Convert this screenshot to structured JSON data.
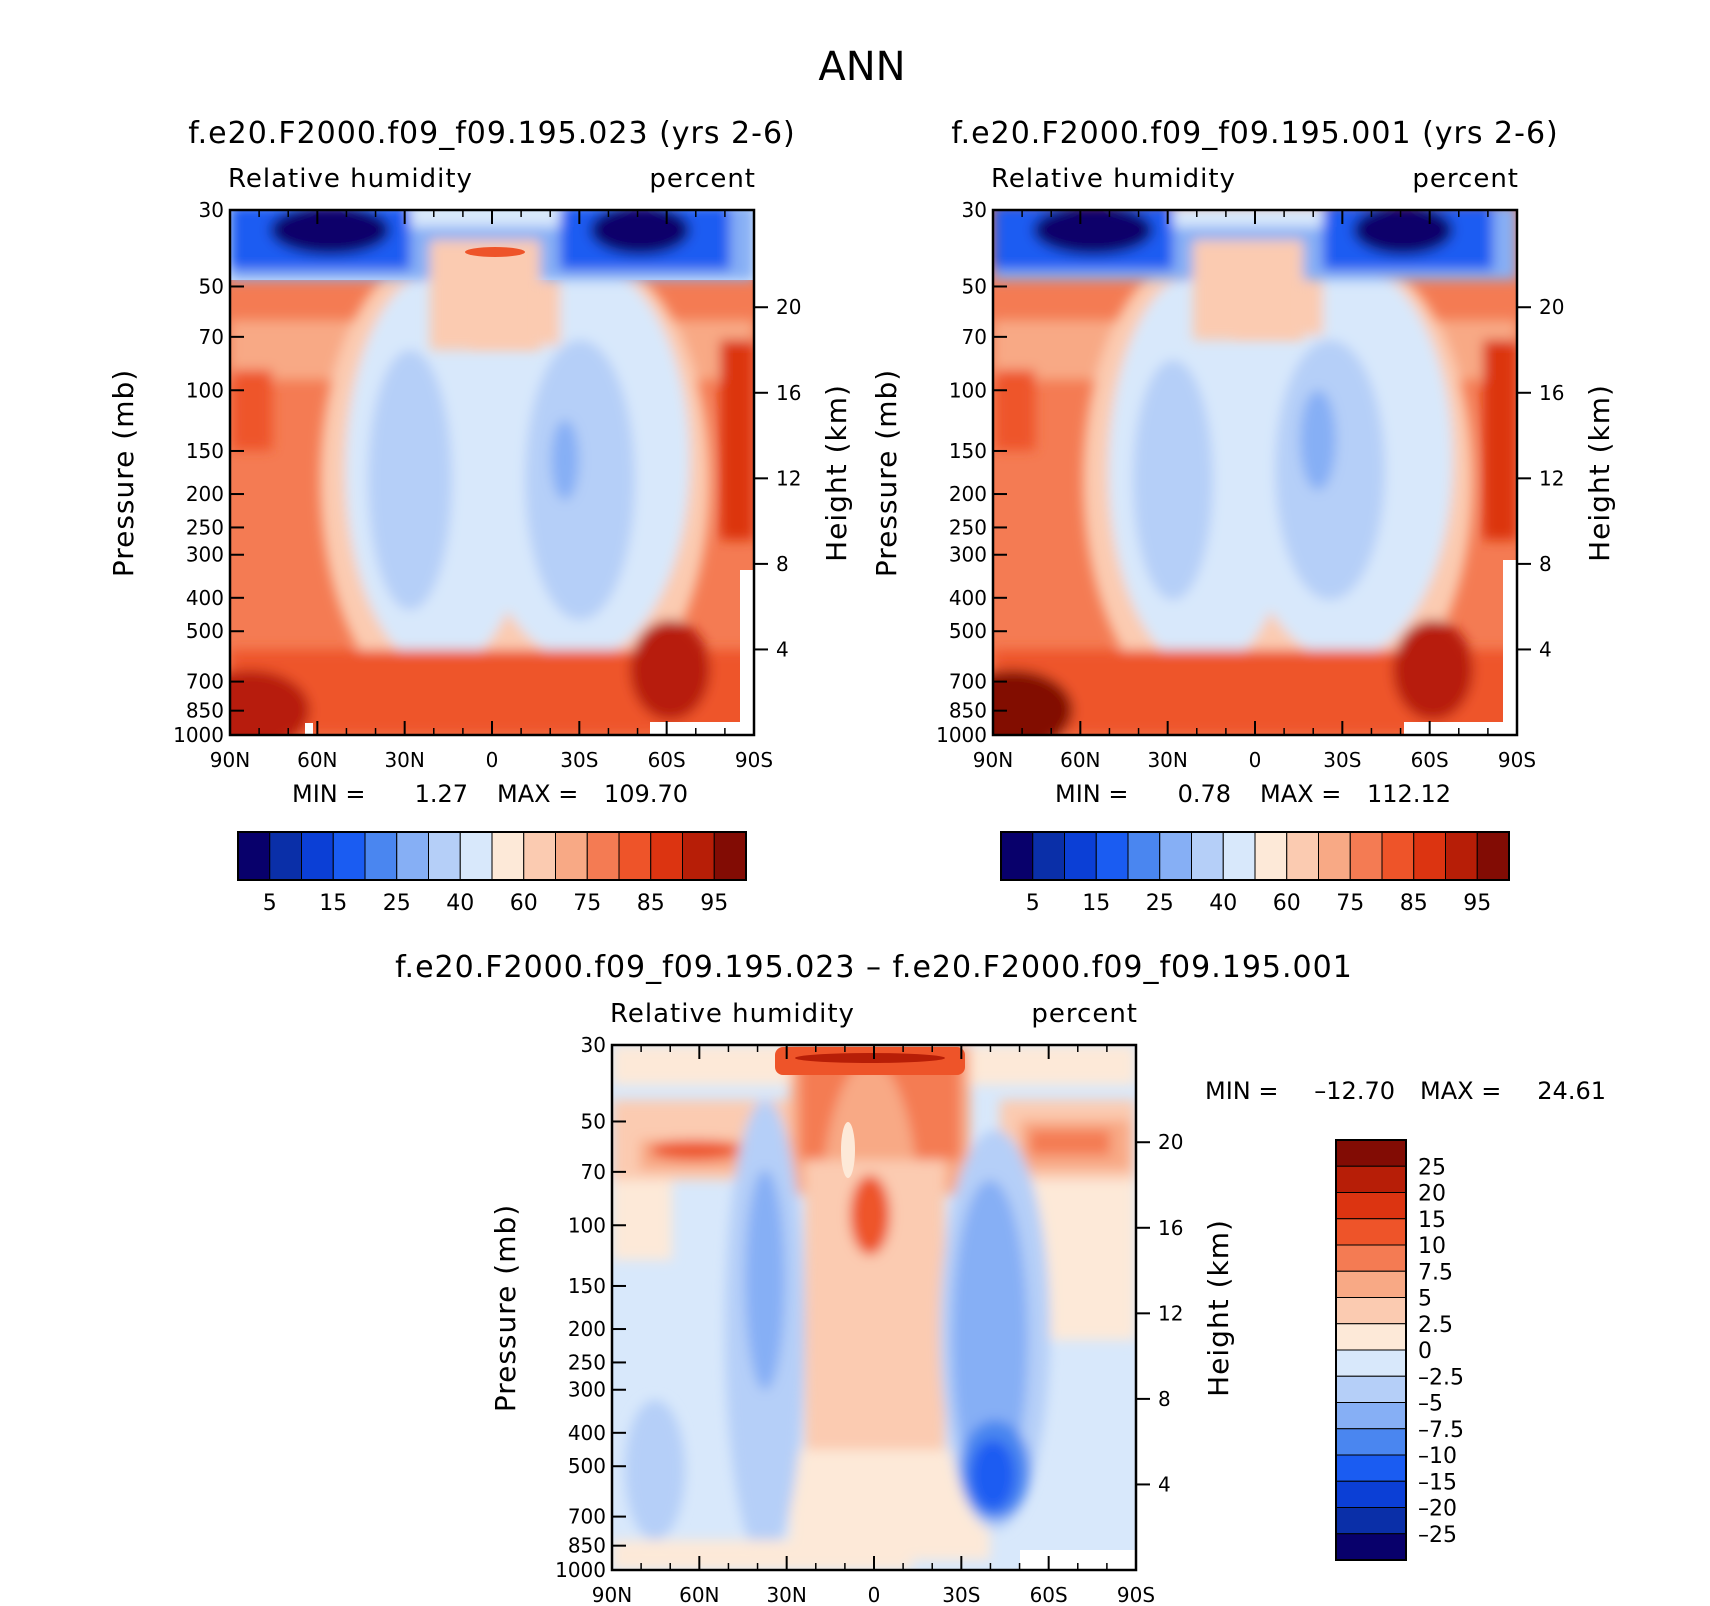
{
  "figure": {
    "title": "ANN"
  },
  "colors": {
    "rh_scale": [
      "#08006b",
      "#0a2fa8",
      "#0b3fd6",
      "#1a5cf2",
      "#4a86f0",
      "#86aff5",
      "#b5cff8",
      "#d8e8fb",
      "#fde9d8",
      "#fbcbb1",
      "#f8a985",
      "#f47b53",
      "#ee5429",
      "#dc3411",
      "#b71e07",
      "#820c04"
    ],
    "diff_scale": [
      "#820c04",
      "#b71e07",
      "#dc3411",
      "#ee5429",
      "#f47b53",
      "#f8a985",
      "#fbcbb1",
      "#fde9d8",
      "#d8e8fb",
      "#b5cff8",
      "#86aff5",
      "#4a86f0",
      "#1a5cf2",
      "#0b3fd6",
      "#0a2fa8",
      "#08006b"
    ]
  },
  "chart_data": [
    {
      "type": "contour",
      "id": "panel1",
      "title": "f.e20.F2000.f09_f09.195.023 (yrs 2-6)",
      "left_label": "Relative humidity",
      "right_label": "percent",
      "xlabel": "",
      "ylabel": "Pressure (mb)",
      "y2label": "Height (km)",
      "x_ticks": [
        "90N",
        "60N",
        "30N",
        "0",
        "30S",
        "60S",
        "90S"
      ],
      "y_ticks": [
        30,
        50,
        70,
        100,
        150,
        200,
        250,
        300,
        400,
        500,
        700,
        850,
        1000
      ],
      "y_range": [
        30,
        1000
      ],
      "height_ticks": [
        20,
        16,
        12,
        8,
        4
      ],
      "min_label": "MIN =",
      "min_value": "1.27",
      "max_label": "MAX =",
      "max_value": "109.70",
      "colorbar_ticks": [
        "5",
        "15",
        "25",
        "40",
        "60",
        "75",
        "85",
        "95"
      ],
      "colorbar_levels": 16
    },
    {
      "type": "contour",
      "id": "panel2",
      "title": "f.e20.F2000.f09_f09.195.001 (yrs 2-6)",
      "left_label": "Relative humidity",
      "right_label": "percent",
      "xlabel": "",
      "ylabel": "Pressure (mb)",
      "y2label": "Height (km)",
      "x_ticks": [
        "90N",
        "60N",
        "30N",
        "0",
        "30S",
        "60S",
        "90S"
      ],
      "y_ticks": [
        30,
        50,
        70,
        100,
        150,
        200,
        250,
        300,
        400,
        500,
        700,
        850,
        1000
      ],
      "y_range": [
        30,
        1000
      ],
      "height_ticks": [
        20,
        16,
        12,
        8,
        4
      ],
      "min_label": "MIN =",
      "min_value": "0.78",
      "max_label": "MAX =",
      "max_value": "112.12",
      "colorbar_ticks": [
        "5",
        "15",
        "25",
        "40",
        "60",
        "75",
        "85",
        "95"
      ],
      "colorbar_levels": 16
    },
    {
      "type": "contour",
      "id": "panel3",
      "title": "f.e20.F2000.f09_f09.195.023 – f.e20.F2000.f09_f09.195.001",
      "left_label": "Relative humidity",
      "right_label": "percent",
      "xlabel": "",
      "ylabel": "Pressure (mb)",
      "y2label": "Height (km)",
      "x_ticks": [
        "90N",
        "60N",
        "30N",
        "0",
        "30S",
        "60S",
        "90S"
      ],
      "y_ticks": [
        30,
        50,
        70,
        100,
        150,
        200,
        250,
        300,
        400,
        500,
        700,
        850,
        1000
      ],
      "y_range": [
        30,
        1000
      ],
      "height_ticks": [
        20,
        16,
        12,
        8,
        4
      ],
      "min_label": "MIN =",
      "min_value": "–12.70",
      "max_label": "MAX =",
      "max_value": "24.61",
      "colorbar_ticks": [
        "25",
        "20",
        "15",
        "10",
        "7.5",
        "5",
        "2.5",
        "0",
        "–2.5",
        "–5",
        "–7.5",
        "–10",
        "–15",
        "–20",
        "–25"
      ],
      "colorbar_levels": 16
    }
  ]
}
